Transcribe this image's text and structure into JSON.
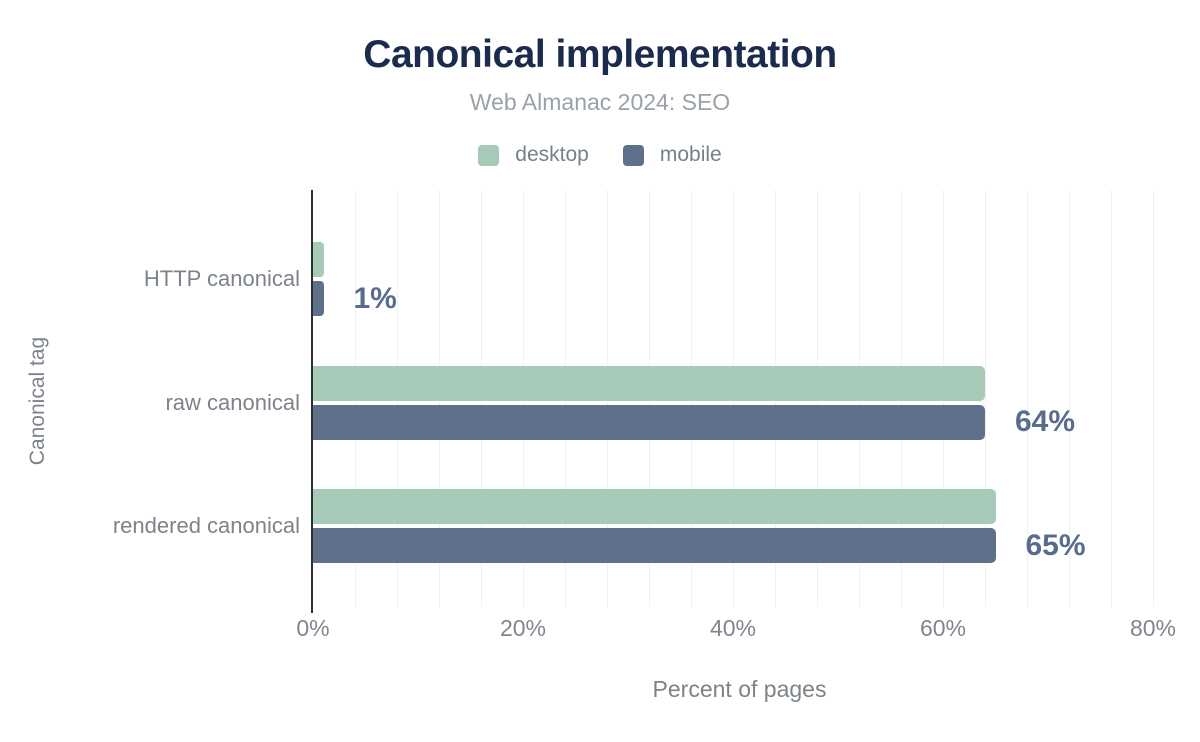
{
  "chart_data": {
    "type": "bar",
    "orientation": "horizontal",
    "title": "Canonical implementation",
    "subtitle": "Web Almanac 2024: SEO",
    "categories": [
      "HTTP canonical",
      "raw canonical",
      "rendered canonical"
    ],
    "series": [
      {
        "name": "desktop",
        "color": "#a5cab8",
        "values": [
          1,
          64,
          65
        ]
      },
      {
        "name": "mobile",
        "color": "#5f708c",
        "values": [
          1,
          64,
          65
        ]
      }
    ],
    "value_labels": [
      "1%",
      "64%",
      "65%"
    ],
    "value_label_color": "#586c8e",
    "xlabel": "Percent of pages",
    "ylabel": "Canonical tag",
    "xlim": [
      0,
      81
    ],
    "x_ticks": [
      {
        "value": 0,
        "label": "0%"
      },
      {
        "value": 20,
        "label": "20%"
      },
      {
        "value": 40,
        "label": "40%"
      },
      {
        "value": 60,
        "label": "60%"
      },
      {
        "value": 80,
        "label": "80%"
      }
    ],
    "grid": {
      "vertical_minor_step_pct": 4,
      "color": "#f0f0f1",
      "horizontal": false
    },
    "legend_position": "top",
    "title_color": "#1b2b4d",
    "subtitle_color": "#9aa1a8",
    "axis_line_color": "#2e2e2e"
  }
}
